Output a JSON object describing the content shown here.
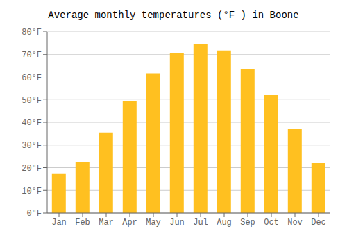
{
  "chart_data": {
    "type": "bar",
    "title": "Average monthly temperatures (°F ) in Boone",
    "categories": [
      "Jan",
      "Feb",
      "Mar",
      "Apr",
      "May",
      "Jun",
      "Jul",
      "Aug",
      "Sep",
      "Oct",
      "Nov",
      "Dec"
    ],
    "values": [
      17.5,
      22.5,
      35.5,
      49.5,
      61.5,
      70.5,
      74.5,
      71.5,
      63.5,
      52.0,
      37.0,
      22.0
    ],
    "color": "#FFC020",
    "ylim": [
      0,
      80
    ],
    "yticks": [
      {
        "value": 0,
        "label": "0°F"
      },
      {
        "value": 10,
        "label": "10°F"
      },
      {
        "value": 20,
        "label": "20°F"
      },
      {
        "value": 30,
        "label": "30°F"
      },
      {
        "value": 40,
        "label": "40°F"
      },
      {
        "value": 50,
        "label": "50°F"
      },
      {
        "value": 60,
        "label": "60°F"
      },
      {
        "value": 70,
        "label": "70°F"
      },
      {
        "value": 80,
        "label": "80°F"
      }
    ],
    "grid": true
  }
}
